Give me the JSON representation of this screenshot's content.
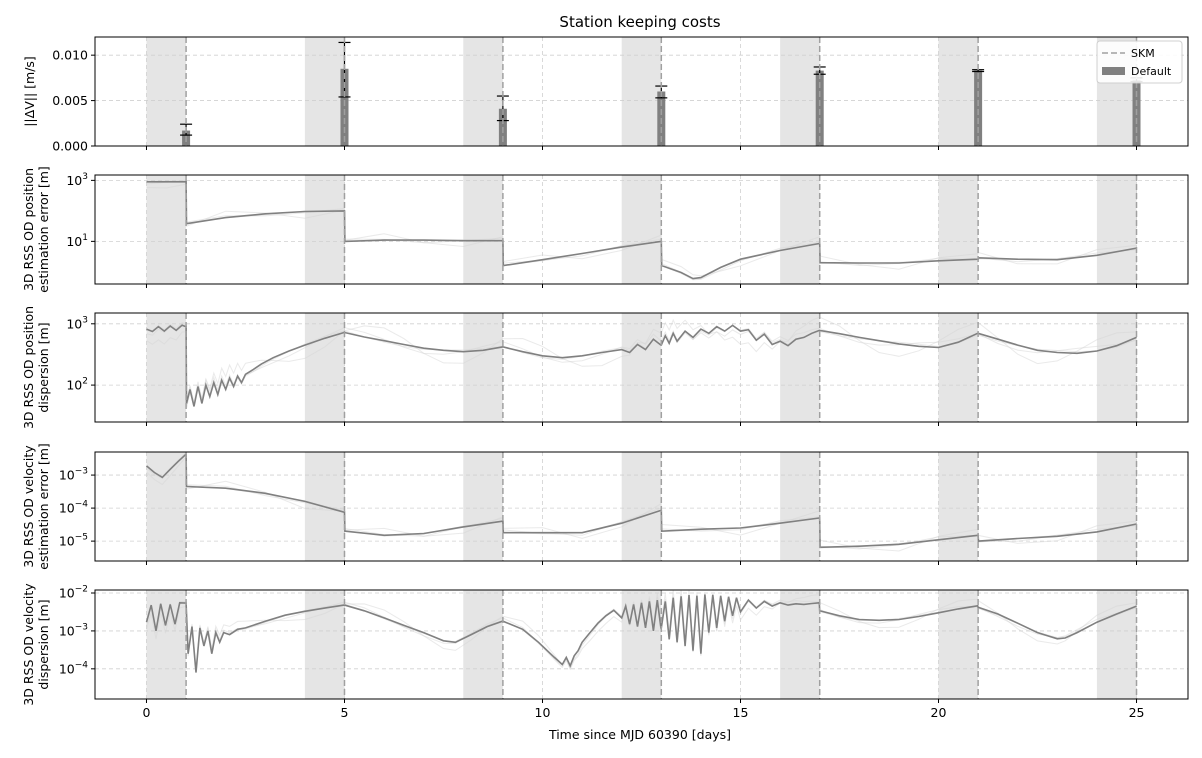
{
  "chart_data": {
    "type": "line",
    "title": "Station keeping costs",
    "xlabel": "Time since MJD 60390 [days]",
    "xlim": [
      -1.3,
      26.3
    ],
    "xticks": [
      0,
      5,
      10,
      15,
      20,
      25
    ],
    "skm_times": [
      1,
      5,
      9,
      13,
      17,
      21,
      25
    ],
    "od_windows": [
      [
        0,
        1
      ],
      [
        4,
        5
      ],
      [
        8,
        9
      ],
      [
        12,
        13
      ],
      [
        16,
        17
      ],
      [
        20,
        21
      ],
      [
        24,
        25
      ]
    ],
    "colors": {
      "main": "#808080",
      "bg": "#eeeeee",
      "window": "#e5e5e5",
      "skm": "#a0a0a0",
      "grid": "#d0d0d0"
    },
    "legend": {
      "placement": "top-right",
      "entries": [
        {
          "label": "SKM",
          "style": "dashed"
        },
        {
          "label": "Default",
          "style": "bar"
        }
      ]
    },
    "panels": [
      {
        "id": "dv",
        "kind": "bar",
        "ylabel": [
          "||ΔV|| [m/s]"
        ],
        "scale": "linear",
        "ylim": [
          0,
          0.012
        ],
        "yticks": [
          0,
          0.005,
          0.01
        ],
        "yticklabels": [
          "0.000",
          "0.005",
          "0.010"
        ],
        "bars": [
          {
            "x": 1,
            "value": 0.0017,
            "err_low": 0.0012,
            "err_high": 0.0024
          },
          {
            "x": 5,
            "value": 0.0085,
            "err_low": 0.0054,
            "err_high": 0.0114
          },
          {
            "x": 9,
            "value": 0.0041,
            "err_low": 0.0028,
            "err_high": 0.0055
          },
          {
            "x": 13,
            "value": 0.006,
            "err_low": 0.0053,
            "err_high": 0.0066
          },
          {
            "x": 17,
            "value": 0.0083,
            "err_low": 0.0079,
            "err_high": 0.0087
          },
          {
            "x": 21,
            "value": 0.0083,
            "err_low": 0.0082,
            "err_high": 0.0084
          },
          {
            "x": 25,
            "value": 0.0073,
            "err_low": 0.0071,
            "err_high": 0.0075
          }
        ]
      },
      {
        "id": "pos-est",
        "kind": "line",
        "ylabel": [
          "3D RSS OD position",
          "estimation error [m]"
        ],
        "scale": "log",
        "ylim": [
          0.4,
          1500
        ],
        "yticks": [
          10,
          1000
        ],
        "yticklabels": [
          "10^1",
          "10^3"
        ],
        "series": [
          {
            "name": "Default",
            "x": [
              0,
              0.5,
              0.99,
              1.0,
              1.01,
              2,
              3,
              4,
              4.99,
              5.0,
              5.01,
              6,
              7,
              8,
              8.99,
              9.0,
              9.01,
              10,
              11,
              12,
              12.99,
              13.0,
              13.01,
              13.5,
              13.8,
              14,
              14.5,
              15,
              16,
              16.99,
              17.0,
              17.01,
              18,
              19,
              20,
              20.99,
              21.0,
              21.01,
              22,
              23,
              24,
              25
            ],
            "y": [
              900,
              900,
              900,
              900,
              38,
              60,
              80,
              95,
              100,
              100,
              10,
              11,
              11,
              10.5,
              10.5,
              10.5,
              1.6,
              2.5,
              4,
              6.5,
              10,
              10,
              1.6,
              0.95,
              0.6,
              0.65,
              1.4,
              2.6,
              5,
              8.5,
              8.5,
              2,
              1.95,
              1.95,
              2.3,
              2.6,
              2.6,
              2.9,
              2.6,
              2.5,
              3.5,
              6
            ]
          }
        ]
      },
      {
        "id": "pos-disp",
        "kind": "line",
        "ylabel": [
          "3D RSS OD position",
          "dispersion [m]"
        ],
        "scale": "log",
        "ylim": [
          25,
          1500
        ],
        "yticks": [
          100,
          1000
        ],
        "yticklabels": [
          "10^2",
          "10^3"
        ],
        "series": [
          {
            "name": "Default",
            "x": [
              0,
              0.15,
              0.3,
              0.45,
              0.6,
              0.75,
              0.9,
              0.99,
              1.0,
              1.01,
              1.1,
              1.2,
              1.3,
              1.4,
              1.5,
              1.6,
              1.7,
              1.8,
              1.9,
              2.0,
              2.1,
              2.2,
              2.3,
              2.4,
              2.5,
              2.7,
              2.9,
              3.2,
              3.6,
              4.0,
              4.5,
              4.99,
              5.0,
              5.5,
              6,
              6.5,
              7,
              7.5,
              8,
              8.5,
              8.99,
              9.0,
              9.5,
              10,
              10.5,
              11,
              11.5,
              12,
              12.2,
              12.4,
              12.6,
              12.8,
              12.99,
              13.0,
              13.1,
              13.2,
              13.3,
              13.4,
              13.6,
              13.8,
              14.0,
              14.2,
              14.4,
              14.6,
              14.8,
              15.0,
              15.2,
              15.4,
              15.6,
              15.8,
              16.0,
              16.2,
              16.4,
              16.6,
              16.8,
              16.99,
              17.0,
              17.5,
              18,
              18.5,
              19,
              19.5,
              20,
              20.5,
              20.99,
              21.0,
              21.5,
              22,
              22.5,
              23,
              23.5,
              24,
              24.5,
              25
            ],
            "y": [
              820,
              750,
              900,
              760,
              920,
              780,
              950,
              900,
              900,
              50,
              85,
              45,
              95,
              50,
              100,
              65,
              110,
              70,
              120,
              85,
              130,
              95,
              140,
              110,
              150,
              180,
              220,
              280,
              360,
              450,
              580,
              720,
              720,
              610,
              530,
              460,
              400,
              370,
              350,
              370,
              420,
              420,
              350,
              300,
              280,
              300,
              340,
              380,
              340,
              460,
              380,
              560,
              450,
              450,
              640,
              480,
              700,
              520,
              760,
              600,
              820,
              700,
              900,
              760,
              940,
              760,
              800,
              540,
              680,
              460,
              520,
              440,
              560,
              600,
              700,
              780,
              780,
              690,
              600,
              530,
              470,
              430,
              410,
              500,
              700,
              700,
              560,
              450,
              370,
              340,
              330,
              360,
              440,
              600
            ]
          }
        ]
      },
      {
        "id": "vel-est",
        "kind": "line",
        "ylabel": [
          "3D RSS OD velocity",
          "estimation error [m]"
        ],
        "scale": "log",
        "ylim": [
          2.5e-06,
          0.005
        ],
        "yticks": [
          1e-05,
          0.0001,
          0.001
        ],
        "yticklabels": [
          "10^-5",
          "10^-4",
          "10^-3"
        ],
        "series": [
          {
            "name": "Default",
            "x": [
              0,
              0.2,
              0.4,
              0.6,
              0.8,
              0.99,
              1.0,
              1.01,
              2,
              3,
              4,
              4.99,
              5.0,
              5.01,
              6,
              7,
              8,
              8.99,
              9.0,
              9.01,
              10,
              11,
              12,
              12.99,
              13.0,
              13.01,
              14,
              15,
              16,
              16.99,
              17.0,
              17.01,
              18,
              19,
              20,
              20.99,
              21.0,
              21.01,
              22,
              23,
              24,
              25
            ],
            "y": [
              0.0019,
              0.0012,
              0.00085,
              0.0015,
              0.0026,
              0.0042,
              0.0042,
              0.00045,
              0.0004,
              0.00028,
              0.00016,
              7.5e-05,
              7.5e-05,
              2e-05,
              1.5e-05,
              1.7e-05,
              2.7e-05,
              4e-05,
              4e-05,
              1.8e-05,
              1.8e-05,
              1.8e-05,
              3.5e-05,
              8.5e-05,
              8.5e-05,
              2e-05,
              2.3e-05,
              2.5e-05,
              3.5e-05,
              5e-05,
              5e-05,
              6.5e-06,
              7e-06,
              8e-06,
              1.1e-05,
              1.5e-05,
              1.5e-05,
              1e-05,
              1.2e-05,
              1.4e-05,
              1.9e-05,
              3.3e-05
            ]
          }
        ]
      },
      {
        "id": "vel-disp",
        "kind": "line",
        "ylabel": [
          "3D RSS OD velocity",
          "dispersion [m]"
        ],
        "scale": "log",
        "ylim": [
          1.6e-05,
          0.012
        ],
        "yticks": [
          0.0001,
          0.001,
          0.01
        ],
        "yticklabels": [
          "10^-4",
          "10^-3",
          "10^-2"
        ],
        "series": [
          {
            "name": "Default",
            "x": [
              0,
              0.12,
              0.24,
              0.36,
              0.48,
              0.6,
              0.72,
              0.84,
              0.99,
              1.0,
              1.05,
              1.15,
              1.25,
              1.35,
              1.45,
              1.55,
              1.65,
              1.75,
              1.85,
              1.95,
              2.1,
              2.3,
              2.5,
              3.0,
              3.5,
              4.0,
              4.5,
              4.99,
              5.0,
              5.5,
              6,
              6.5,
              7,
              7.5,
              7.8,
              8.2,
              8.6,
              8.99,
              9.0,
              9.5,
              9.9,
              10.3,
              10.5,
              10.6,
              10.7,
              10.8,
              10.9,
              11.0,
              11.2,
              11.4,
              11.6,
              11.8,
              12.0,
              12.1,
              12.2,
              12.3,
              12.4,
              12.5,
              12.6,
              12.7,
              12.8,
              12.9,
              12.99,
              13.0,
              13.1,
              13.2,
              13.3,
              13.4,
              13.5,
              13.6,
              13.7,
              13.8,
              13.9,
              14.0,
              14.1,
              14.2,
              14.3,
              14.4,
              14.5,
              14.6,
              14.7,
              14.8,
              14.9,
              15.0,
              15.2,
              15.4,
              15.6,
              15.8,
              16.0,
              16.2,
              16.4,
              16.6,
              16.8,
              16.99,
              17.0,
              17.5,
              18,
              18.5,
              19,
              19.5,
              20,
              20.5,
              20.99,
              21.0,
              21.5,
              22,
              22.5,
              23,
              23.2,
              23.5,
              24,
              24.5,
              25
            ],
            "y": [
              0.0017,
              0.0048,
              0.001,
              0.0052,
              0.0014,
              0.005,
              0.0015,
              0.0055,
              0.0054,
              0.0054,
              0.00025,
              0.0013,
              8e-05,
              0.0012,
              0.0004,
              0.001,
              0.00025,
              0.0009,
              0.0005,
              0.0009,
              0.0008,
              0.0011,
              0.0012,
              0.0018,
              0.0026,
              0.0033,
              0.004,
              0.0048,
              0.0048,
              0.0034,
              0.0022,
              0.0014,
              0.0009,
              0.00055,
              0.0005,
              0.0008,
              0.0013,
              0.0018,
              0.0018,
              0.0011,
              0.0005,
              0.0002,
              0.00013,
              0.0002,
              0.00012,
              0.00022,
              0.0003,
              0.0005,
              0.0009,
              0.0016,
              0.0025,
              0.0035,
              0.0022,
              0.0045,
              0.0015,
              0.005,
              0.0013,
              0.0055,
              0.0012,
              0.006,
              0.001,
              0.0065,
              0.0012,
              0.0012,
              0.006,
              0.0006,
              0.0075,
              0.0005,
              0.0082,
              0.0004,
              0.0088,
              0.0003,
              0.0085,
              0.00025,
              0.0092,
              0.0009,
              0.009,
              0.0012,
              0.0085,
              0.0018,
              0.008,
              0.0025,
              0.0075,
              0.0032,
              0.0065,
              0.004,
              0.006,
              0.0045,
              0.0055,
              0.0048,
              0.0052,
              0.005,
              0.0053,
              0.0055,
              0.0034,
              0.0025,
              0.002,
              0.0019,
              0.002,
              0.0024,
              0.003,
              0.0038,
              0.0046,
              0.0042,
              0.0028,
              0.0016,
              0.0009,
              0.00062,
              0.00065,
              0.0009,
              0.0017,
              0.0028,
              0.0045
            ]
          }
        ]
      }
    ]
  }
}
